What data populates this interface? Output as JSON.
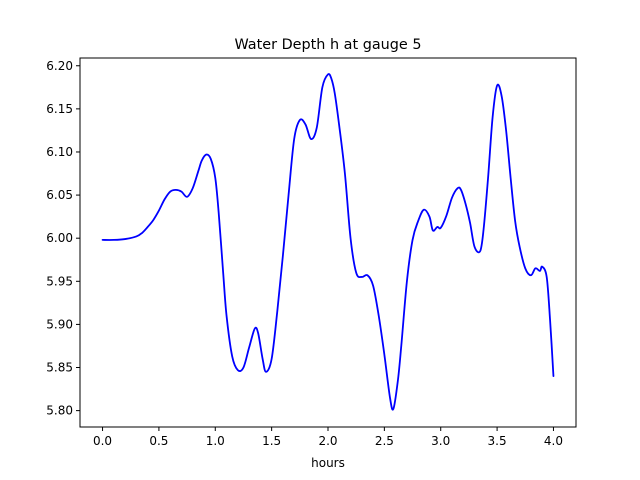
{
  "chart_data": {
    "type": "line",
    "title": "Water Depth h at gauge 5",
    "xlabel": "hours",
    "ylabel": "",
    "xlim": [
      -0.2,
      4.2
    ],
    "ylim": [
      5.781,
      6.209
    ],
    "xticks": [
      0.0,
      0.5,
      1.0,
      1.5,
      2.0,
      2.5,
      3.0,
      3.5,
      4.0
    ],
    "xtick_labels": [
      "0.0",
      "0.5",
      "1.0",
      "1.5",
      "2.0",
      "2.5",
      "3.0",
      "3.5",
      "4.0"
    ],
    "yticks": [
      5.8,
      5.85,
      5.9,
      5.95,
      6.0,
      6.05,
      6.1,
      6.15,
      6.2
    ],
    "ytick_labels": [
      "5.80",
      "5.85",
      "5.90",
      "5.95",
      "6.00",
      "6.05",
      "6.10",
      "6.15",
      "6.20"
    ],
    "grid": false,
    "legend": "none",
    "series": [
      {
        "color": "#0000ff",
        "x": [
          0.0,
          0.1,
          0.2,
          0.3,
          0.35,
          0.4,
          0.45,
          0.5,
          0.55,
          0.6,
          0.65,
          0.7,
          0.75,
          0.8,
          0.85,
          0.88,
          0.92,
          0.96,
          1.0,
          1.03,
          1.07,
          1.1,
          1.15,
          1.2,
          1.25,
          1.3,
          1.35,
          1.38,
          1.42,
          1.45,
          1.5,
          1.55,
          1.6,
          1.65,
          1.7,
          1.75,
          1.8,
          1.85,
          1.9,
          1.95,
          2.0,
          2.03,
          2.06,
          2.1,
          2.15,
          2.2,
          2.25,
          2.3,
          2.35,
          2.4,
          2.45,
          2.5,
          2.55,
          2.58,
          2.62,
          2.65,
          2.7,
          2.75,
          2.8,
          2.85,
          2.9,
          2.93,
          2.97,
          3.0,
          3.05,
          3.1,
          3.15,
          3.18,
          3.22,
          3.26,
          3.3,
          3.35,
          3.38,
          3.42,
          3.46,
          3.5,
          3.54,
          3.58,
          3.62,
          3.66,
          3.7,
          3.75,
          3.8,
          3.84,
          3.88,
          3.9,
          3.94,
          3.97,
          4.0
        ],
        "y": [
          5.998,
          5.998,
          5.999,
          6.002,
          6.006,
          6.013,
          6.021,
          6.032,
          6.045,
          6.054,
          6.056,
          6.054,
          6.048,
          6.058,
          6.078,
          6.09,
          6.097,
          6.092,
          6.07,
          6.03,
          5.96,
          5.91,
          5.863,
          5.847,
          5.85,
          5.873,
          5.895,
          5.89,
          5.86,
          5.845,
          5.86,
          5.915,
          5.98,
          6.05,
          6.115,
          6.137,
          6.132,
          6.115,
          6.128,
          6.175,
          6.19,
          6.185,
          6.168,
          6.13,
          6.075,
          6.0,
          5.96,
          5.955,
          5.957,
          5.945,
          5.91,
          5.865,
          5.815,
          5.802,
          5.835,
          5.875,
          5.95,
          5.998,
          6.02,
          6.033,
          6.025,
          6.009,
          6.013,
          6.012,
          6.026,
          6.047,
          6.058,
          6.056,
          6.04,
          6.018,
          5.99,
          5.985,
          6.01,
          6.07,
          6.14,
          6.177,
          6.165,
          6.125,
          6.07,
          6.02,
          5.99,
          5.965,
          5.957,
          5.965,
          5.962,
          5.967,
          5.955,
          5.905,
          5.84
        ]
      }
    ]
  }
}
